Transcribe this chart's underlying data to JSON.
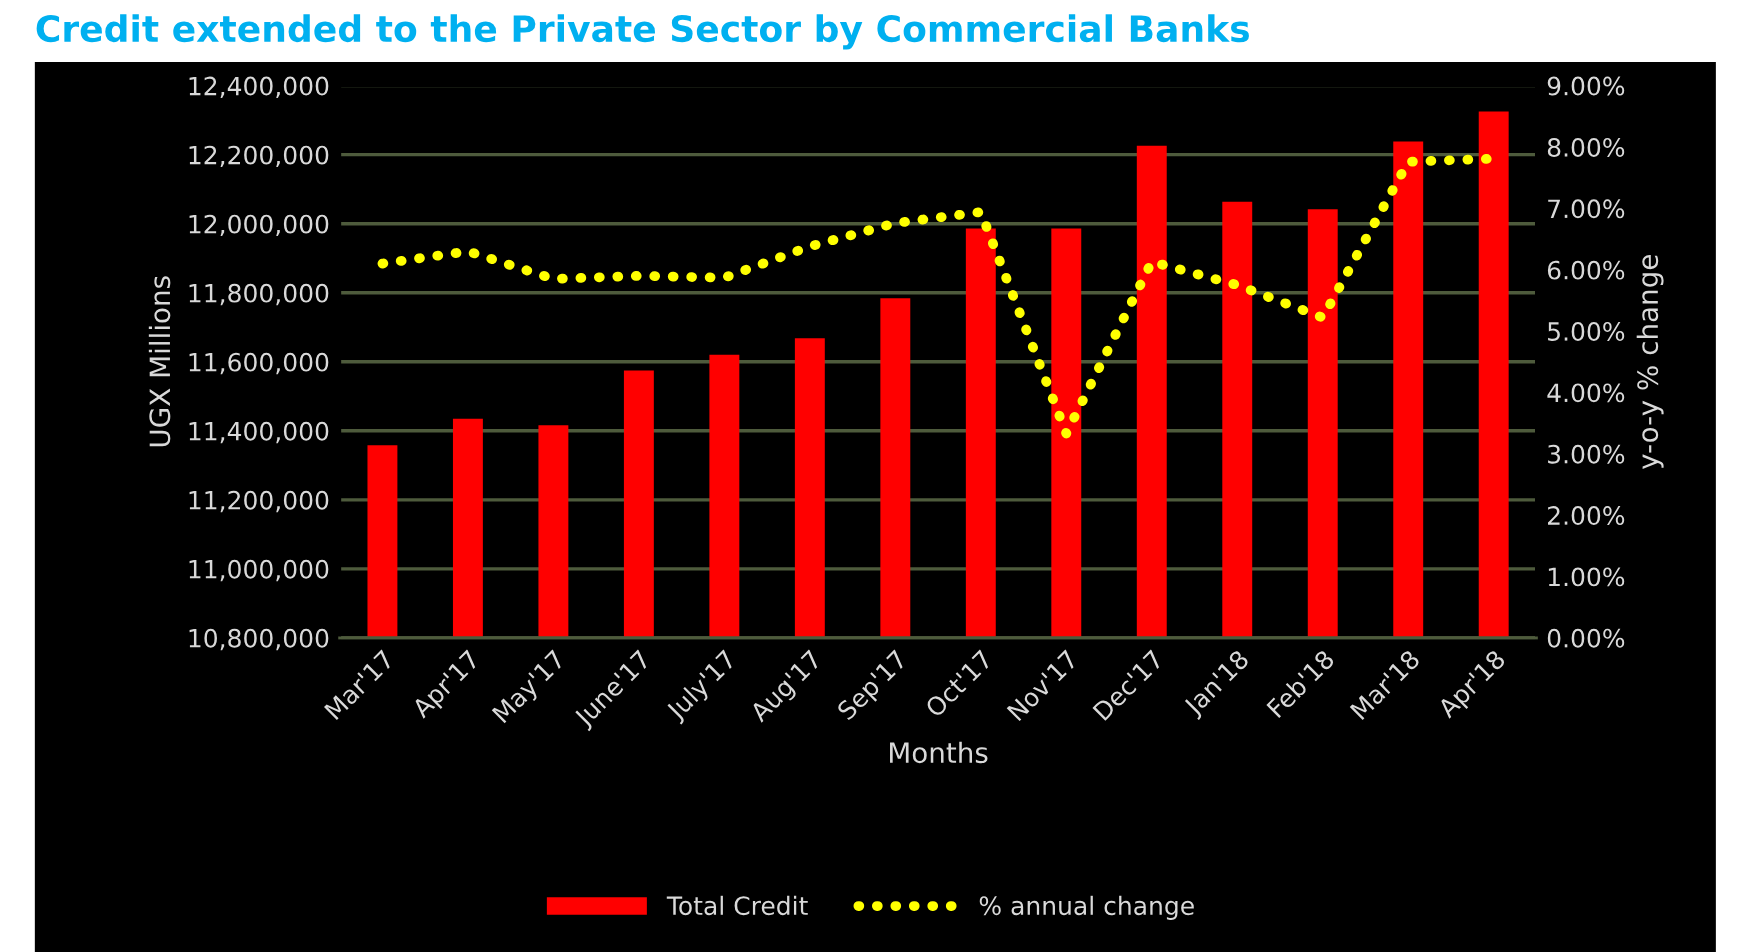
{
  "chart_data": {
    "type": "bar",
    "title": "Credit extended to the Private Sector by Commercial Banks",
    "xlabel": "Months",
    "ylabel": "UGX Millions",
    "y2label": "y-o-y % change",
    "categories": [
      "Mar'17",
      "Apr'17",
      "May'17",
      "June'17",
      "July'17",
      "Aug'17",
      "Sep'17",
      "Oct'17",
      "Nov'17",
      "Dec'17",
      "Jan'18",
      "Feb'18",
      "Mar'18",
      "Apr'18"
    ],
    "series": [
      {
        "name": "Total Credit",
        "color": "#ff0000",
        "values": [
          11358000,
          11435000,
          11416000,
          11575000,
          11620000,
          11668000,
          11784000,
          11986000,
          11986000,
          12226000,
          12064000,
          12042000,
          12238000,
          12325000
        ]
      },
      {
        "name": "% annual change",
        "type": "line",
        "axis": "y2",
        "color": "#ffff00",
        "line_style": "dotted",
        "marker": "none",
        "values": [
          6.1,
          6.3,
          5.85,
          5.9,
          5.87,
          6.38,
          6.76,
          6.94,
          3.33,
          6.13,
          5.75,
          5.22,
          7.76,
          7.81
        ]
      }
    ],
    "ylim": [
      10800000,
      12400000
    ],
    "yticks": [
      {
        "value": 10800000,
        "label": "10,800,000"
      },
      {
        "value": 11000000,
        "label": "11,000,000"
      },
      {
        "value": 11200000,
        "label": "11,200,000"
      },
      {
        "value": 11400000,
        "label": "11,400,000"
      },
      {
        "value": 11600000,
        "label": "11,600,000"
      },
      {
        "value": 11800000,
        "label": "11,800,000"
      },
      {
        "value": 12000000,
        "label": "12,000,000"
      },
      {
        "value": 12200000,
        "label": "12,200,000"
      },
      {
        "value": 12400000,
        "label": "12,400,000"
      }
    ],
    "y2lim": [
      0,
      9
    ],
    "y2ticks": [
      {
        "value": 0,
        "label": "0.00%"
      },
      {
        "value": 1,
        "label": "1.00%"
      },
      {
        "value": 2,
        "label": "2.00%"
      },
      {
        "value": 3,
        "label": "3.00%"
      },
      {
        "value": 4,
        "label": "4.00%"
      },
      {
        "value": 5,
        "label": "5.00%"
      },
      {
        "value": 6,
        "label": "6.00%"
      },
      {
        "value": 7,
        "label": "7.00%"
      },
      {
        "value": 8,
        "label": "8.00%"
      },
      {
        "value": 9,
        "label": "9.00%"
      }
    ],
    "grid": "y",
    "legend": "bottom"
  }
}
